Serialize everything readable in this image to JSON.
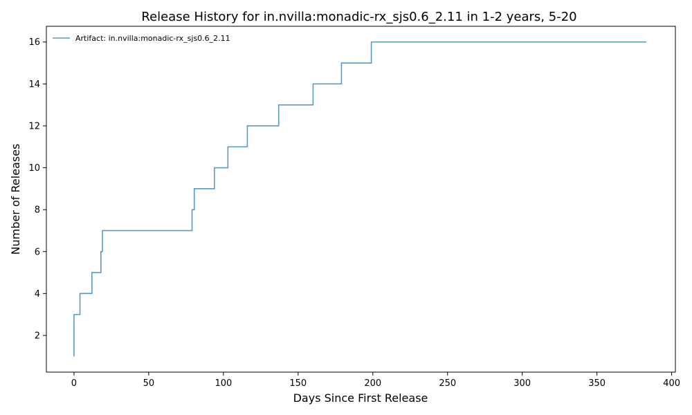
{
  "chart_data": {
    "type": "line",
    "step": "post",
    "title": "Release History for in.nvilla:monadic-rx_sjs0.6_2.11 in 1-2 years, 5-20",
    "xlabel": "Days Since First Release",
    "ylabel": "Number of Releases",
    "xlim": [
      -18.5,
      402.5
    ],
    "ylim": [
      0.25,
      16.75
    ],
    "xticks": [
      0,
      50,
      100,
      150,
      200,
      250,
      300,
      350,
      400
    ],
    "yticks": [
      2,
      4,
      6,
      8,
      10,
      12,
      14,
      16
    ],
    "legend_position": "top-left",
    "grid": false,
    "series": [
      {
        "name": "Artifact: in.nvilla:monadic-rx_sjs0.6_2.11",
        "color": "#1f77b4",
        "x": [
          0,
          0,
          4,
          12,
          18,
          19,
          79,
          80.5,
          94,
          103,
          116,
          137,
          160,
          179,
          199,
          383
        ],
        "y": [
          1,
          3,
          4,
          5,
          6,
          7,
          8,
          9,
          10,
          11,
          12,
          13,
          14,
          15,
          16,
          16
        ]
      }
    ]
  }
}
